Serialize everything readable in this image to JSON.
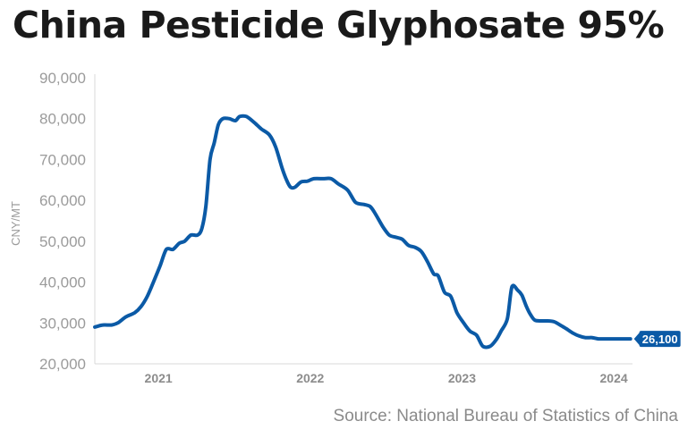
{
  "title": "China Pesticide Glyphosate 95%",
  "source": "Source: National Bureau of Statistics of China",
  "colors": {
    "line": "#0b5aa6",
    "axis_text": "#9b9b9b",
    "axis_line": "#d9d9d9",
    "title": "#1a1a1a"
  },
  "chart_data": {
    "type": "line",
    "title": "China Pesticide Glyphosate 95%",
    "xlabel": "",
    "ylabel": "CNY/MT",
    "ylim": [
      20000,
      90000
    ],
    "xlim": [
      "2020-08-01",
      "2024-02-15"
    ],
    "yticks": [
      20000,
      30000,
      40000,
      50000,
      60000,
      70000,
      80000,
      90000
    ],
    "ytick_labels": [
      "20,000",
      "30,000",
      "40,000",
      "50,000",
      "60,000",
      "70,000",
      "80,000",
      "90,000"
    ],
    "xticks": [
      "2021-01-01",
      "2022-01-01",
      "2023-01-01",
      "2024-01-01"
    ],
    "xtick_labels": [
      "2021",
      "2022",
      "2023",
      "2024"
    ],
    "grid": false,
    "end_label": "26,100",
    "series": [
      {
        "x": [
          "2020-08-01",
          "2020-08-20",
          "2020-09-10",
          "2020-09-25",
          "2020-10-15",
          "2020-11-05",
          "2020-11-20",
          "2020-12-05",
          "2020-12-20",
          "2021-01-05",
          "2021-01-20",
          "2021-02-05",
          "2021-02-20",
          "2021-03-05",
          "2021-03-20",
          "2021-04-05",
          "2021-04-15",
          "2021-04-25",
          "2021-05-05",
          "2021-05-15",
          "2021-05-25",
          "2021-06-05",
          "2021-06-20",
          "2021-07-05",
          "2021-07-15",
          "2021-08-01",
          "2021-08-20",
          "2021-09-05",
          "2021-09-25",
          "2021-10-10",
          "2021-10-25",
          "2021-11-05",
          "2021-11-15",
          "2021-11-25",
          "2021-12-10",
          "2021-12-25",
          "2022-01-10",
          "2022-02-01",
          "2022-02-20",
          "2022-03-10",
          "2022-04-01",
          "2022-04-20",
          "2022-05-10",
          "2022-05-25",
          "2022-06-05",
          "2022-06-25",
          "2022-07-10",
          "2022-07-25",
          "2022-08-10",
          "2022-08-25",
          "2022-09-10",
          "2022-09-25",
          "2022-10-10",
          "2022-10-25",
          "2022-11-05",
          "2022-11-20",
          "2022-12-05",
          "2022-12-20",
          "2023-01-05",
          "2023-01-20",
          "2023-02-05",
          "2023-02-20",
          "2023-03-10",
          "2023-03-25",
          "2023-04-05",
          "2023-04-20",
          "2023-05-01",
          "2023-05-15",
          "2023-05-25",
          "2023-06-05",
          "2023-06-15",
          "2023-06-25",
          "2023-07-10",
          "2023-07-25",
          "2023-08-10",
          "2023-08-25",
          "2023-09-10",
          "2023-09-25",
          "2023-10-10",
          "2023-10-25",
          "2023-11-10",
          "2023-11-25",
          "2023-12-10",
          "2023-12-25",
          "2024-01-10",
          "2024-01-25",
          "2024-02-10"
        ],
        "values": [
          29000,
          29500,
          29500,
          30000,
          31500,
          32500,
          34000,
          36500,
          40000,
          44000,
          48000,
          48000,
          49500,
          50000,
          51500,
          51500,
          53000,
          58500,
          70000,
          74000,
          78500,
          80000,
          80000,
          79500,
          80500,
          80500,
          79000,
          77500,
          76000,
          73000,
          68000,
          65000,
          63200,
          63200,
          64500,
          64700,
          65300,
          65300,
          65300,
          64000,
          62500,
          59500,
          59000,
          58500,
          57000,
          53500,
          51500,
          51000,
          50500,
          49000,
          48500,
          47500,
          45000,
          42000,
          41500,
          37500,
          36500,
          32500,
          30000,
          28000,
          27000,
          24300,
          24300,
          26000,
          28000,
          31000,
          38800,
          38000,
          36800,
          34000,
          32000,
          30700,
          30500,
          30500,
          30300,
          29500,
          28500,
          27500,
          26800,
          26400,
          26400,
          26100,
          26100,
          26100,
          26100,
          26100,
          26100
        ]
      }
    ]
  }
}
